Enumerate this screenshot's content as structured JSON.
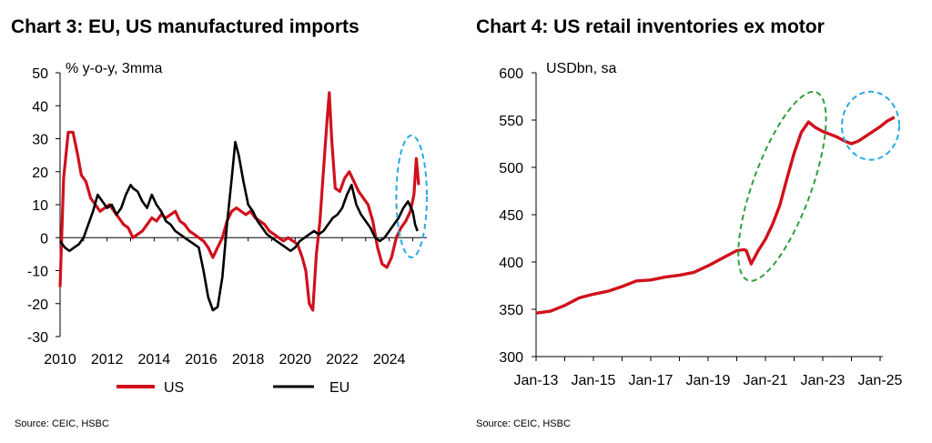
{
  "colors": {
    "us": "#d0111c",
    "eu": "#000000",
    "highlight_blue": "#27a9e1",
    "highlight_green": "#2e9e3e",
    "axis": "#000000"
  },
  "charts": {
    "left": {
      "title": "Chart 3: EU, US manufactured imports",
      "source": "Source: CEIC, HSBC"
    },
    "right": {
      "title": "Chart 4: US retail inventories ex motor",
      "source": "Source: CEIC, HSBC"
    }
  },
  "chart_data": [
    {
      "type": "line",
      "title": "Chart 3: EU, US manufactured imports",
      "unit_label": "% y-o-y, 3mma",
      "xlim": [
        2010,
        2025.6
      ],
      "ylim": [
        -30,
        50
      ],
      "xticks": [
        2010,
        2012,
        2014,
        2016,
        2018,
        2020,
        2022,
        2024
      ],
      "yticks": [
        -30,
        -20,
        -10,
        0,
        10,
        20,
        30,
        40,
        50
      ],
      "legend_position": "bottom",
      "annotations": [
        {
          "shape": "dashed-ellipse",
          "color": "blue",
          "x_range": [
            2024.3,
            2025.6
          ],
          "y_range": [
            -6,
            31
          ]
        }
      ],
      "series": [
        {
          "name": "US",
          "color": "#d0111c",
          "x": [
            2010.0,
            2010.15,
            2010.35,
            2010.55,
            2010.75,
            2010.9,
            2011.1,
            2011.3,
            2011.5,
            2011.7,
            2011.9,
            2012.1,
            2012.3,
            2012.5,
            2012.7,
            2012.9,
            2013.1,
            2013.3,
            2013.5,
            2013.7,
            2013.9,
            2014.1,
            2014.3,
            2014.5,
            2014.7,
            2014.9,
            2015.1,
            2015.3,
            2015.5,
            2015.7,
            2015.9,
            2016.1,
            2016.3,
            2016.5,
            2016.7,
            2016.9,
            2017.1,
            2017.3,
            2017.5,
            2017.7,
            2017.9,
            2018.1,
            2018.3,
            2018.5,
            2018.7,
            2018.9,
            2019.1,
            2019.3,
            2019.5,
            2019.7,
            2019.9,
            2020.1,
            2020.3,
            2020.45,
            2020.6,
            2020.75,
            2020.9,
            2021.05,
            2021.2,
            2021.35,
            2021.45,
            2021.55,
            2021.7,
            2021.9,
            2022.1,
            2022.3,
            2022.5,
            2022.7,
            2022.9,
            2023.1,
            2023.3,
            2023.5,
            2023.7,
            2023.9,
            2024.1,
            2024.3,
            2024.5,
            2024.7,
            2024.9,
            2025.05,
            2025.15,
            2025.25
          ],
          "y": [
            -15,
            18,
            32,
            32,
            25,
            19,
            17,
            12,
            10,
            8,
            9,
            10,
            8,
            6,
            4,
            3,
            0,
            1,
            2,
            4,
            6,
            5,
            7,
            6,
            7,
            8,
            5,
            4,
            2,
            1,
            0,
            -1,
            -3,
            -6,
            -3,
            0,
            5,
            8,
            9,
            8,
            7,
            8,
            6,
            5,
            4,
            2,
            1,
            0,
            -1,
            0,
            -1,
            -2,
            -6,
            -10,
            -20,
            -22,
            -5,
            5,
            20,
            35,
            44,
            30,
            15,
            14,
            18,
            20,
            17,
            14,
            12,
            10,
            5,
            -3,
            -8,
            -9,
            -6,
            0,
            3,
            5,
            8,
            13,
            24,
            16
          ]
        },
        {
          "name": "EU",
          "color": "#000000",
          "x": [
            2010.0,
            2010.2,
            2010.4,
            2010.6,
            2010.8,
            2011.0,
            2011.2,
            2011.4,
            2011.6,
            2011.8,
            2012.0,
            2012.2,
            2012.4,
            2012.6,
            2012.8,
            2013.0,
            2013.1,
            2013.3,
            2013.5,
            2013.7,
            2013.9,
            2014.1,
            2014.3,
            2014.5,
            2014.7,
            2014.9,
            2015.1,
            2015.3,
            2015.5,
            2015.7,
            2015.9,
            2016.1,
            2016.3,
            2016.5,
            2016.7,
            2016.9,
            2017.1,
            2017.3,
            2017.45,
            2017.6,
            2017.8,
            2018.0,
            2018.2,
            2018.4,
            2018.6,
            2018.8,
            2019.0,
            2019.2,
            2019.4,
            2019.6,
            2019.8,
            2020.0,
            2020.2,
            2020.4,
            2020.6,
            2020.8,
            2021.0,
            2021.2,
            2021.4,
            2021.6,
            2021.8,
            2022.0,
            2022.2,
            2022.4,
            2022.6,
            2022.8,
            2023.0,
            2023.2,
            2023.4,
            2023.6,
            2023.8,
            2024.0,
            2024.2,
            2024.4,
            2024.6,
            2024.8,
            2025.0,
            2025.1,
            2025.2
          ],
          "y": [
            -1,
            -3,
            -4,
            -3,
            -2,
            0,
            4,
            8,
            13,
            11,
            9,
            10,
            7,
            9,
            13,
            16,
            15,
            14,
            11,
            9,
            13,
            10,
            8,
            5,
            4,
            2,
            1,
            0,
            -1,
            -2,
            -3,
            -10,
            -18,
            -22,
            -21,
            -12,
            4,
            18,
            29,
            25,
            17,
            10,
            8,
            5,
            3,
            1,
            0,
            -1,
            -2,
            -3,
            -4,
            -3,
            -1,
            0,
            1,
            2,
            1,
            2,
            4,
            6,
            7,
            9,
            13,
            16,
            10,
            7,
            5,
            3,
            0,
            -1,
            0,
            2,
            4,
            6,
            9,
            11,
            8,
            4,
            2
          ]
        }
      ]
    },
    {
      "type": "line",
      "title": "Chart 4: US retail inventories ex motor",
      "unit_label": "USDbn, sa",
      "xticks": [
        "Jan-13",
        "Jan-15",
        "Jan-17",
        "Jan-19",
        "Jan-21",
        "Jan-23",
        "Jan-25"
      ],
      "ylim": [
        300,
        600
      ],
      "yticks": [
        300,
        350,
        400,
        450,
        500,
        550,
        600
      ],
      "annotations": [
        {
          "shape": "dashed-ellipse",
          "color": "green",
          "x_range": [
            "Jun-20",
            "Oct-22"
          ],
          "y_range": [
            392,
            568
          ]
        },
        {
          "shape": "dashed-ellipse",
          "color": "blue",
          "x_range": [
            "Sep-23",
            "Sep-25"
          ],
          "y_range": [
            508,
            580
          ]
        }
      ],
      "series": [
        {
          "name": "US retail inventories ex motor",
          "color": "#d0111c",
          "x": [
            "Jan-13",
            "Jul-13",
            "Jan-14",
            "Jul-14",
            "Jan-15",
            "Jul-15",
            "Jan-16",
            "Jul-16",
            "Jan-17",
            "Jul-17",
            "Jan-18",
            "Jul-18",
            "Jan-19",
            "Jul-19",
            "Jan-20",
            "Apr-20",
            "May-20",
            "Jul-20",
            "Oct-20",
            "Jan-21",
            "Apr-21",
            "Jul-21",
            "Oct-21",
            "Jan-22",
            "Apr-22",
            "Jul-22",
            "Oct-22",
            "Jan-23",
            "Apr-23",
            "Jul-23",
            "Oct-23",
            "Jan-24",
            "Apr-24",
            "Jul-24",
            "Oct-24",
            "Jan-25",
            "Apr-25",
            "Jul-25"
          ],
          "y": [
            346,
            348,
            354,
            362,
            366,
            369,
            374,
            380,
            381,
            384,
            386,
            389,
            396,
            404,
            412,
            413,
            412,
            398,
            412,
            424,
            440,
            460,
            488,
            515,
            537,
            548,
            542,
            538,
            535,
            532,
            528,
            525,
            528,
            533,
            538,
            543,
            549,
            553
          ]
        }
      ]
    }
  ]
}
